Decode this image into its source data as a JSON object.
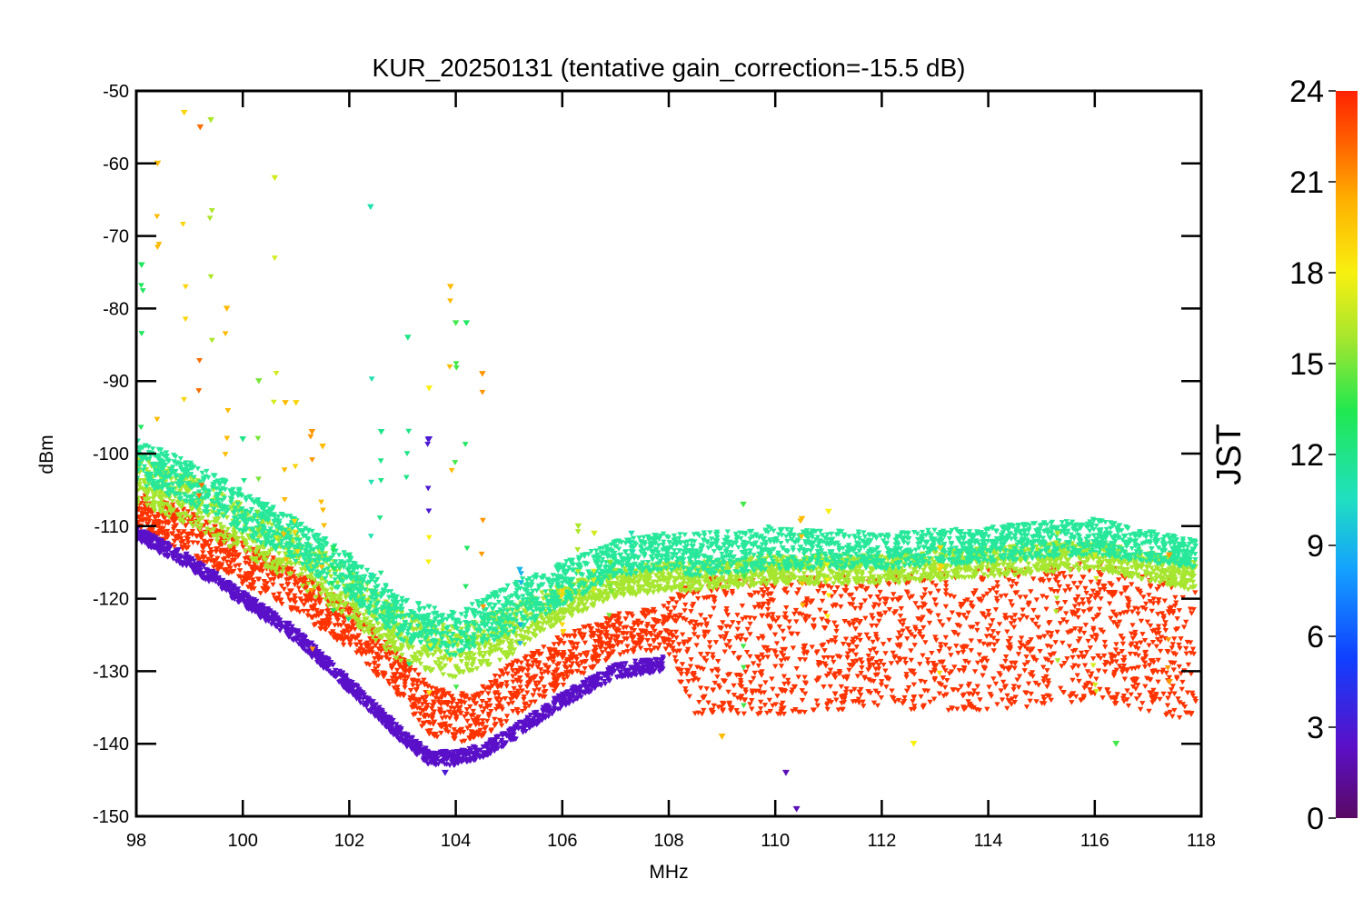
{
  "chart_data": {
    "type": "scatter",
    "title": "KUR_20250131 (tentative gain_correction=-15.5 dB)",
    "xlabel": "MHz",
    "ylabel": "dBm",
    "xlim": [
      98,
      118
    ],
    "ylim": [
      -150,
      -50
    ],
    "x_ticks": [
      "98",
      "100",
      "102",
      "104",
      "106",
      "108",
      "110",
      "112",
      "114",
      "116",
      "118"
    ],
    "y_ticks": [
      "-50",
      "-60",
      "-70",
      "-80",
      "-90",
      "-100",
      "-110",
      "-120",
      "-130",
      "-140",
      "-150"
    ],
    "colorbar": {
      "label": "JST",
      "range": [
        0,
        24
      ],
      "ticks": [
        "24",
        "21",
        "18",
        "15",
        "12",
        "9",
        "6",
        "3",
        "0"
      ],
      "colormap": "rainbow"
    },
    "marker": "down-triangle",
    "grid": false,
    "series": [
      {
        "hour": 22,
        "color": "#ff3300",
        "x": [
          98,
          99,
          100,
          101,
          102,
          103,
          103.5,
          104,
          104.5,
          105,
          106,
          107,
          107.9,
          108.5,
          110,
          112,
          114,
          116,
          117.9
        ],
        "y_min": [
          -110,
          -114,
          -118,
          -122,
          -127,
          -134,
          -139,
          -140,
          -139,
          -137,
          -132,
          -128,
          -127,
          -136,
          -136,
          -135,
          -136,
          -134,
          -137
        ],
        "y_max": [
          -105,
          -108,
          -112,
          -116,
          -121,
          -128,
          -132,
          -133,
          -132,
          -129,
          -125,
          -122,
          -121,
          -117,
          -117,
          -117,
          -116,
          -115,
          -118
        ]
      },
      {
        "hour": 18,
        "color": "#a6e62e",
        "x": [
          98,
          99,
          100,
          101,
          102,
          103,
          104,
          105,
          106,
          107,
          107.9,
          108.5,
          110,
          112,
          114,
          116,
          117.9
        ],
        "y_min": [
          -107,
          -110,
          -114,
          -118,
          -123,
          -129,
          -131,
          -128,
          -123,
          -120,
          -119,
          -119,
          -118,
          -118,
          -117,
          -116,
          -119
        ],
        "y_max": [
          -100,
          -103,
          -107,
          -111,
          -116,
          -122,
          -124,
          -121,
          -118,
          -116,
          -115,
          -115,
          -114,
          -114,
          -113,
          -112,
          -115
        ]
      },
      {
        "hour": 11,
        "color": "#27e89a",
        "x": [
          98,
          99,
          100,
          101,
          102,
          103,
          104,
          105,
          106,
          107,
          107.9,
          108.5,
          110,
          112,
          114,
          116,
          117.9
        ],
        "y_min": [
          -104,
          -107,
          -111,
          -115,
          -120,
          -126,
          -128,
          -125,
          -121,
          -117,
          -116,
          -117,
          -116,
          -116,
          -115,
          -114,
          -116
        ],
        "y_max": [
          -98,
          -101,
          -105,
          -109,
          -114,
          -120,
          -122,
          -118,
          -115,
          -112,
          -111,
          -111,
          -110,
          -111,
          -110,
          -109,
          -112
        ]
      },
      {
        "hour": 3,
        "color": "#5a10c8",
        "x": [
          98,
          99,
          100,
          101,
          102,
          103,
          103.5,
          104,
          104.5,
          105,
          106,
          107,
          107.9
        ],
        "y_min": [
          -112,
          -116,
          -121,
          -126,
          -133,
          -140,
          -143,
          -143,
          -142,
          -140,
          -135,
          -131,
          -130
        ],
        "y_max": [
          -110,
          -114,
          -119,
          -124,
          -131,
          -138,
          -141,
          -141,
          -140,
          -138,
          -133,
          -129,
          -128
        ]
      }
    ],
    "spikes": [
      {
        "x": 98.1,
        "top": -74,
        "bottom": -108,
        "hour": 13
      },
      {
        "x": 98.4,
        "top": -60,
        "bottom": -109,
        "hour": 20
      },
      {
        "x": 98.9,
        "top": -53,
        "bottom": -110,
        "hour": 19
      },
      {
        "x": 99.2,
        "top": -55,
        "bottom": -111,
        "hour": 22
      },
      {
        "x": 99.4,
        "top": -54,
        "bottom": -112,
        "hour": 16
      },
      {
        "x": 99.7,
        "top": -80,
        "bottom": -113,
        "hour": 20
      },
      {
        "x": 100.0,
        "top": -98,
        "bottom": -115,
        "hour": 12
      },
      {
        "x": 100.3,
        "top": -90,
        "bottom": -116,
        "hour": 15
      },
      {
        "x": 100.6,
        "top": -62,
        "bottom": -117,
        "hour": 17
      },
      {
        "x": 100.8,
        "top": -93,
        "bottom": -118,
        "hour": 20
      },
      {
        "x": 101.0,
        "top": -93,
        "bottom": -119,
        "hour": 19
      },
      {
        "x": 101.3,
        "top": -97,
        "bottom": -127,
        "hour": 21
      },
      {
        "x": 101.5,
        "top": -99,
        "bottom": -121,
        "hour": 20
      },
      {
        "x": 101.7,
        "top": -113,
        "bottom": -122,
        "hour": 13
      },
      {
        "x": 102.0,
        "top": -114,
        "bottom": -124,
        "hour": 12
      },
      {
        "x": 102.4,
        "top": -66,
        "bottom": -126,
        "hour": 11
      },
      {
        "x": 102.6,
        "top": -97,
        "bottom": -127,
        "hour": 12
      },
      {
        "x": 103.1,
        "top": -84,
        "bottom": -130,
        "hour": 12
      },
      {
        "x": 103.5,
        "top": -91,
        "bottom": -134,
        "hour": 18
      },
      {
        "x": 103.5,
        "top": -98,
        "bottom": -112,
        "hour": 3
      },
      {
        "x": 103.9,
        "top": -77,
        "bottom": -135,
        "hour": 20
      },
      {
        "x": 104.0,
        "top": -82,
        "bottom": -136,
        "hour": 14
      },
      {
        "x": 104.2,
        "top": -82,
        "bottom": -135,
        "hour": 13
      },
      {
        "x": 104.5,
        "top": -89,
        "bottom": -133,
        "hour": 21
      },
      {
        "x": 105.2,
        "top": -116,
        "bottom": -130,
        "hour": 9
      },
      {
        "x": 106.0,
        "top": -119,
        "bottom": -127,
        "hour": 19
      },
      {
        "x": 106.3,
        "top": -110,
        "bottom": -125,
        "hour": 16
      },
      {
        "x": 106.6,
        "top": -111,
        "bottom": -124,
        "hour": 17
      },
      {
        "x": 106.9,
        "top": -115,
        "bottom": -123,
        "hour": 15
      },
      {
        "x": 107.3,
        "top": -111,
        "bottom": -122,
        "hour": 11
      },
      {
        "x": 109.4,
        "top": -107,
        "bottom": -135,
        "hour": 14
      },
      {
        "x": 110.5,
        "top": -109,
        "bottom": -136,
        "hour": 20
      },
      {
        "x": 111.0,
        "top": -108,
        "bottom": -135,
        "hour": 18
      },
      {
        "x": 113.1,
        "top": -113,
        "bottom": -133,
        "hour": 19
      },
      {
        "x": 115.3,
        "top": -111,
        "bottom": -131,
        "hour": 16
      },
      {
        "x": 116.0,
        "top": -114,
        "bottom": -133,
        "hour": 17
      },
      {
        "x": 117.4,
        "top": -114,
        "bottom": -134,
        "hour": 21
      }
    ],
    "outliers": [
      {
        "x": 110.2,
        "y": -144,
        "hour": 2
      },
      {
        "x": 110.4,
        "y": -149,
        "hour": 2
      },
      {
        "x": 103.8,
        "y": -144,
        "hour": 3
      },
      {
        "x": 109.0,
        "y": -139,
        "hour": 20
      },
      {
        "x": 112.6,
        "y": -140,
        "hour": 18
      },
      {
        "x": 116.4,
        "y": -140,
        "hour": 14
      }
    ]
  }
}
